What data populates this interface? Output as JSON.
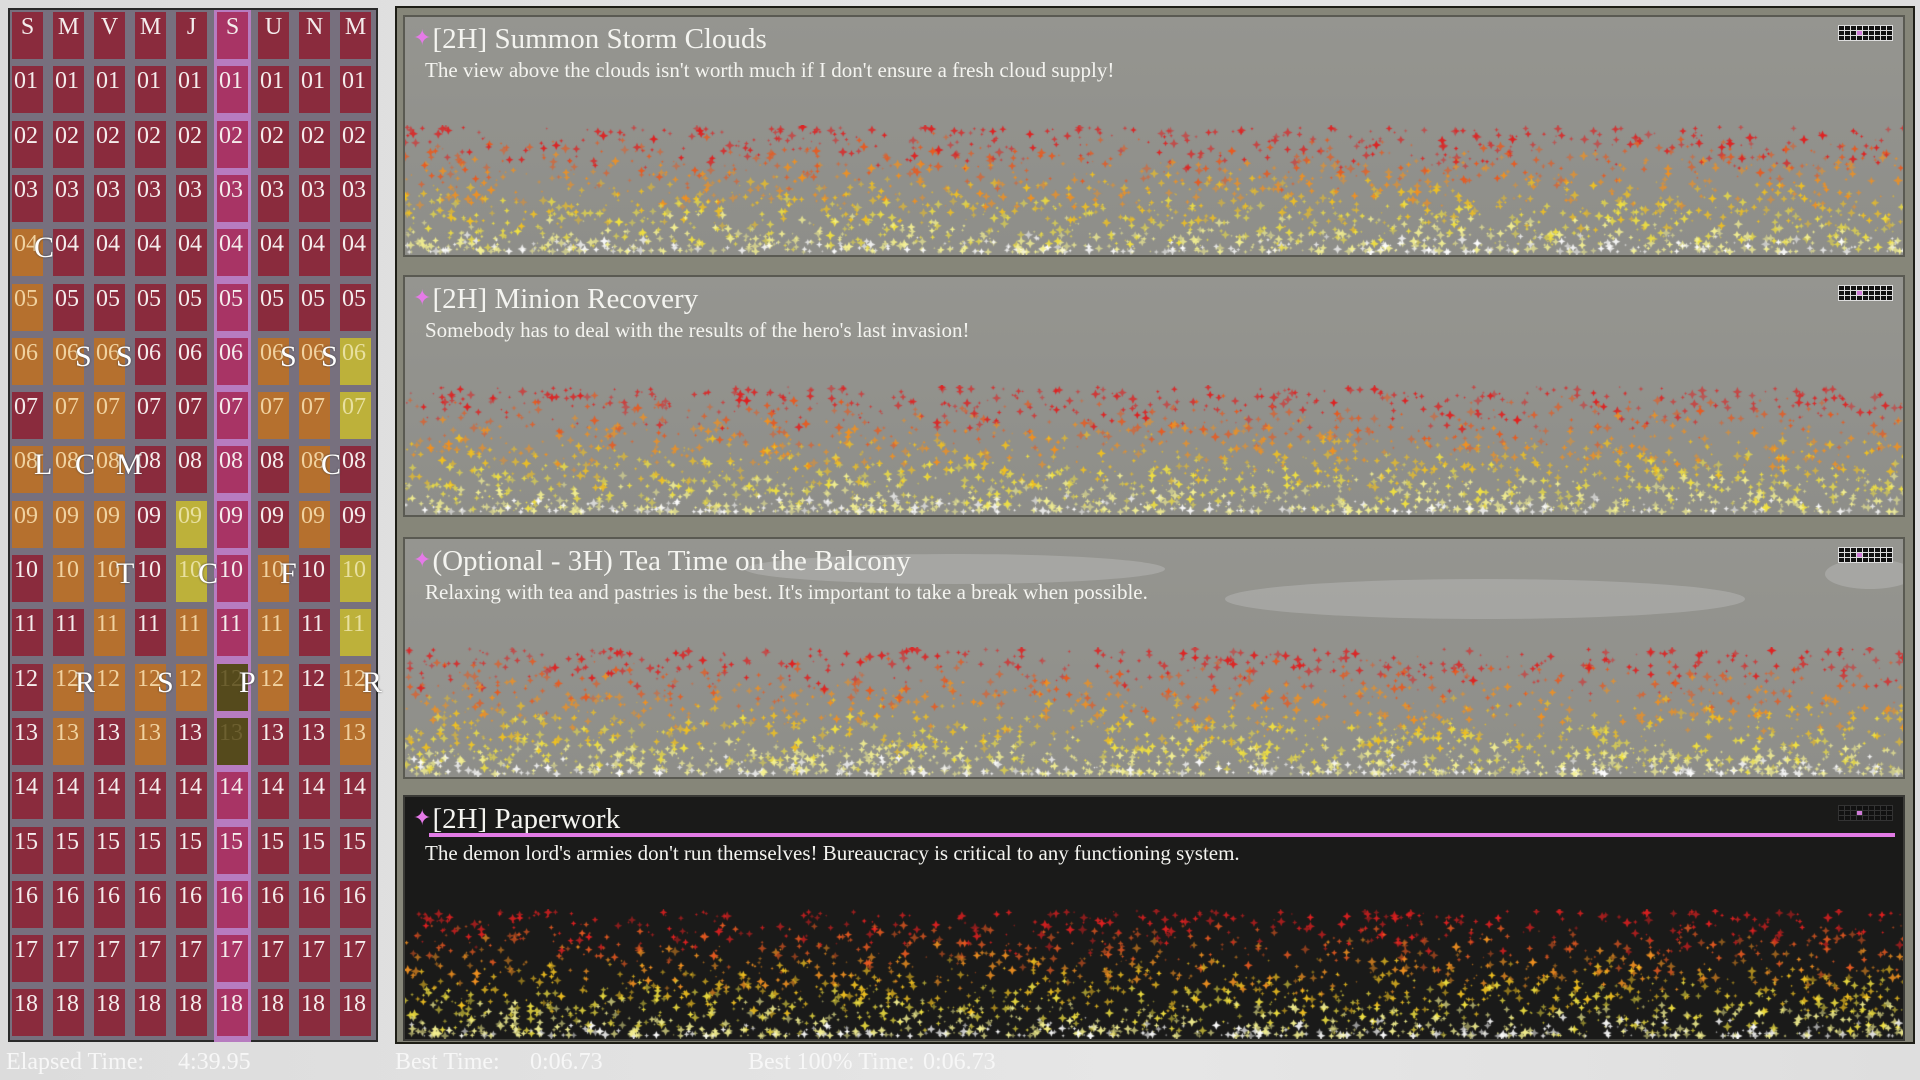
{
  "calendar": {
    "day_headers": [
      "S",
      "M",
      "V",
      "M",
      "J",
      "S",
      "U",
      "N",
      "M"
    ],
    "highlighted_column": 5,
    "hours": [
      "01",
      "02",
      "03",
      "04",
      "05",
      "06",
      "07",
      "08",
      "09",
      "10",
      "11",
      "12",
      "13",
      "14",
      "15",
      "16",
      "17",
      "18"
    ],
    "colors": {
      "empty": "#8a2b3d",
      "highlight": "#a83465",
      "scheduled": "#b5702e",
      "completed": "#bdb13a",
      "current": "#554a1c"
    },
    "blocks": [
      {
        "col": 0,
        "start": "04",
        "end": "06",
        "state": "scheduled",
        "label": "C"
      },
      {
        "col": 0,
        "start": "08",
        "end": "09",
        "state": "scheduled",
        "label": "L"
      },
      {
        "col": 1,
        "start": "06",
        "end": "07",
        "state": "scheduled",
        "label": "S"
      },
      {
        "col": 1,
        "start": "08",
        "end": "10",
        "state": "scheduled",
        "label": "C"
      },
      {
        "col": 1,
        "start": "12",
        "end": "13",
        "state": "scheduled",
        "label": "R"
      },
      {
        "col": 2,
        "start": "06",
        "end": "07",
        "state": "scheduled",
        "label": "S"
      },
      {
        "col": 2,
        "start": "08",
        "end": "09",
        "state": "scheduled",
        "label": "M"
      },
      {
        "col": 2,
        "start": "10",
        "end": "12",
        "state": "scheduled",
        "label": "T"
      },
      {
        "col": 3,
        "start": "12",
        "end": "13",
        "state": "scheduled",
        "label": "S"
      },
      {
        "col": 4,
        "start": "09",
        "end": "10",
        "state": "completed",
        "label": "C",
        "label_at": "10"
      },
      {
        "col": 4,
        "start": "11",
        "end": "12",
        "state": "scheduled",
        "label": ""
      },
      {
        "col": 5,
        "start": "12",
        "end": "13",
        "state": "current",
        "label": "P"
      },
      {
        "col": 6,
        "start": "06",
        "end": "07",
        "state": "scheduled",
        "label": "S"
      },
      {
        "col": 6,
        "start": "10",
        "end": "12",
        "state": "scheduled",
        "label": "F"
      },
      {
        "col": 7,
        "start": "06",
        "end": "07",
        "state": "scheduled",
        "label": "S"
      },
      {
        "col": 7,
        "start": "08",
        "end": "09",
        "state": "scheduled",
        "label": "C"
      },
      {
        "col": 8,
        "start": "06",
        "end": "07",
        "state": "completed",
        "label": ""
      },
      {
        "col": 8,
        "start": "10",
        "end": "11",
        "state": "completed",
        "label": ""
      },
      {
        "col": 8,
        "start": "12",
        "end": "13",
        "state": "scheduled",
        "label": "R"
      }
    ]
  },
  "tasks": [
    {
      "title": "[2H] Summon Storm Clouds",
      "description": "The view above the clouds isn't worth much if I don't ensure a fresh cloud supply!",
      "selected": false,
      "icon": "sparkle-icon",
      "grid_marker": {
        "row": 1,
        "col": 3
      }
    },
    {
      "title": "[2H] Minion Recovery",
      "description": "Somebody has to deal with the results of the hero's last invasion!",
      "selected": false,
      "icon": "sparkle-icon",
      "grid_marker": {
        "row": 1,
        "col": 3
      }
    },
    {
      "title": "(Optional - 3H) Tea Time on the Balcony",
      "description": "Relaxing with tea and pastries is the best. It's important to take a break when possible.",
      "selected": false,
      "icon": "sparkle-icon",
      "grid_marker": {
        "row": 1,
        "col": 3
      }
    },
    {
      "title": "[2H] Paperwork",
      "description": "The demon lord's armies don't run themselves! Bureaucracy is critical to any functioning system.",
      "selected": true,
      "icon": "sparkle-icon",
      "grid_marker": {
        "row": 1,
        "col": 3
      }
    }
  ],
  "accent_color": "#e27be5",
  "footer": {
    "elapsed_label": "Elapsed Time:",
    "elapsed_value": "4:39.95",
    "best_label": "Best Time:",
    "best_value": "0:06.73",
    "best100_label": "Best 100% Time:",
    "best100_value": "0:06.73"
  }
}
